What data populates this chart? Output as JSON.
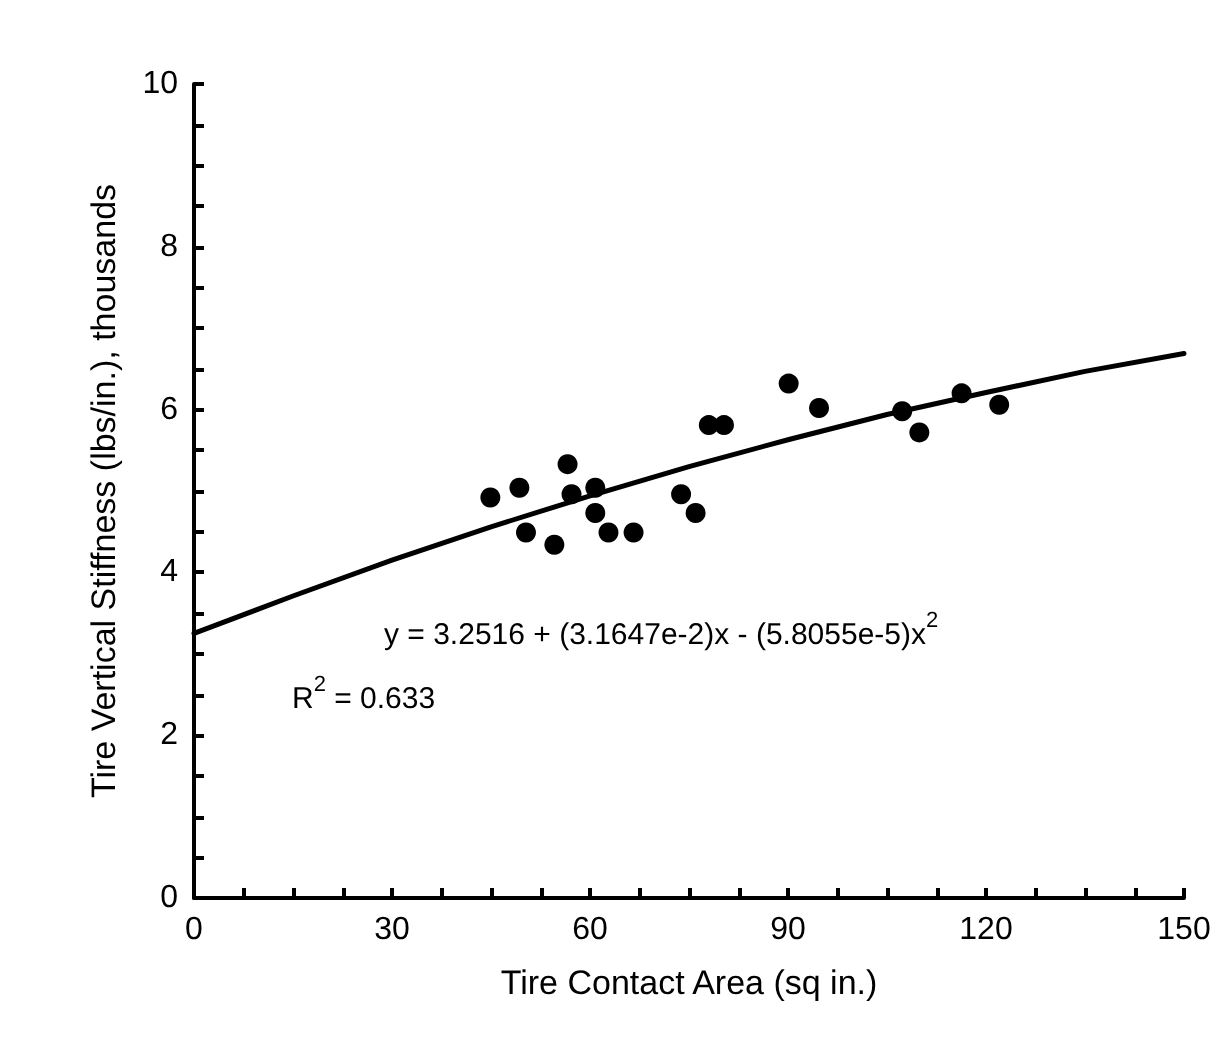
{
  "chart_data": {
    "type": "scatter",
    "xlabel": "Tire Contact Area (sq in.)",
    "ylabel": "Tire Vertical Stiffness (lbs/in.), thousands",
    "x": [
      44.9,
      49.3,
      50.3,
      54.6,
      56.6,
      57.2,
      60.8,
      60.8,
      62.8,
      66.6,
      73.8,
      76.0,
      78.0,
      80.3,
      90.1,
      94.7,
      107.3,
      109.9,
      116.3,
      122.0
    ],
    "series": [
      {
        "color": "#000000",
        "marker": "circle",
        "values": [
          4.92,
          5.04,
          4.49,
          4.34,
          5.33,
          4.96,
          5.04,
          4.73,
          4.49,
          4.49,
          4.96,
          4.73,
          5.81,
          5.81,
          6.32,
          6.02,
          5.98,
          5.72,
          6.2,
          6.06
        ]
      },
      {
        "type": "line",
        "color": "#000000",
        "marker": "none",
        "line_style": "solid",
        "x": [
          0,
          15,
          30,
          45,
          60,
          75,
          90,
          105,
          120,
          135,
          150
        ],
        "values": [
          3.25,
          3.71,
          4.15,
          4.56,
          4.94,
          5.3,
          5.63,
          5.94,
          6.21,
          6.47,
          6.69
        ]
      }
    ],
    "xlim": [
      0,
      150
    ],
    "ylim": [
      0,
      10
    ],
    "xticks": [
      0,
      {
        "value": 7.5,
        "label": null
      },
      {
        "value": 15,
        "label": null
      },
      {
        "value": 22.5,
        "label": null
      },
      30,
      {
        "value": 37.5,
        "label": null
      },
      {
        "value": 45,
        "label": null
      },
      {
        "value": 52.5,
        "label": null
      },
      60,
      {
        "value": 67.5,
        "label": null
      },
      {
        "value": 75,
        "label": null
      },
      {
        "value": 82.5,
        "label": null
      },
      90,
      {
        "value": 97.5,
        "label": null
      },
      {
        "value": 105,
        "label": null
      },
      {
        "value": 112.5,
        "label": null
      },
      120,
      {
        "value": 127.5,
        "label": null
      },
      {
        "value": 135,
        "label": null
      },
      {
        "value": 142.5,
        "label": null
      },
      150
    ],
    "yticks": [
      0,
      {
        "value": 0.5,
        "label": null
      },
      {
        "value": 1,
        "label": null
      },
      {
        "value": 1.5,
        "label": null
      },
      2,
      {
        "value": 2.5,
        "label": null
      },
      {
        "value": 3,
        "label": null
      },
      {
        "value": 3.5,
        "label": null
      },
      4,
      {
        "value": 4.5,
        "label": null
      },
      {
        "value": 5,
        "label": null
      },
      {
        "value": 5.5,
        "label": null
      },
      6,
      {
        "value": 6.5,
        "label": null
      },
      {
        "value": 7,
        "label": null
      },
      {
        "value": 7.5,
        "label": null
      },
      8,
      {
        "value": 8.5,
        "label": null
      },
      {
        "value": 9,
        "label": null
      },
      {
        "value": 9.5,
        "label": null
      },
      10
    ],
    "annotations": [
      "y = 3.2516 + (3.1647e-2)x - (5.8055e-5)x$^{2}$",
      "R$^{2}$ = 0.633"
    ],
    "grid": false
  }
}
